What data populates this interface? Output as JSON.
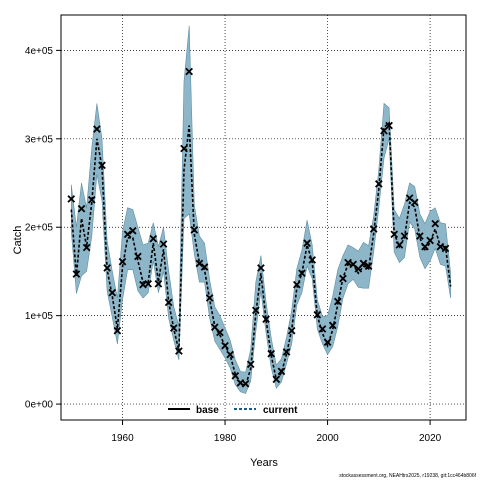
{
  "chart_data": {
    "type": "line",
    "title": "",
    "xlabel": "Years",
    "ylabel": "Catch",
    "xlim": [
      1948,
      2027
    ],
    "ylim": [
      -18000,
      440000
    ],
    "x_ticks": [
      1960,
      1980,
      2000,
      2020
    ],
    "x_tick_labels": [
      "1960",
      "1980",
      "2000",
      "2020"
    ],
    "y_ticks": [
      0,
      100000,
      200000,
      300000,
      400000
    ],
    "y_tick_labels": [
      "0e+00",
      "1e+05",
      "2e+05",
      "3e+05",
      "4e+05"
    ],
    "grid": true,
    "legend_position": "bottom-center",
    "band_color": "#8db6c9",
    "band_edge_color": "#5f8ea5",
    "line_color": "#000000",
    "legend": [
      {
        "label": "base",
        "style": "solid",
        "color": "#000000"
      },
      {
        "label": "current",
        "style": "dashed",
        "color": "#1a5c84"
      }
    ],
    "x": [
      1950,
      1951,
      1952,
      1953,
      1954,
      1955,
      1956,
      1957,
      1958,
      1959,
      1960,
      1961,
      1962,
      1963,
      1964,
      1965,
      1966,
      1967,
      1968,
      1969,
      1970,
      1971,
      1972,
      1973,
      1974,
      1975,
      1976,
      1977,
      1978,
      1979,
      1980,
      1981,
      1982,
      1983,
      1984,
      1985,
      1986,
      1987,
      1988,
      1989,
      1990,
      1991,
      1992,
      1993,
      1994,
      1995,
      1996,
      1997,
      1998,
      1999,
      2000,
      2001,
      2002,
      2003,
      2004,
      2005,
      2006,
      2007,
      2008,
      2009,
      2010,
      2011,
      2012,
      2013,
      2014,
      2015,
      2016,
      2017,
      2018,
      2019,
      2020,
      2021,
      2022,
      2023,
      2024
    ],
    "series": [
      {
        "name": "base",
        "values": [
          225000,
          150000,
          215000,
          180000,
          230000,
          305000,
          270000,
          155000,
          125000,
          87000,
          158000,
          190000,
          190000,
          165000,
          140000,
          140000,
          185000,
          140000,
          178000,
          118000,
          88000,
          62000,
          270000,
          310000,
          195000,
          162000,
          155000,
          120000,
          90000,
          80000,
          68000,
          57000,
          35000,
          24000,
          22000,
          42000,
          105000,
          150000,
          96000,
          56000,
          29000,
          36000,
          58000,
          85000,
          133000,
          150000,
          182000,
          163000,
          102000,
          82000,
          68000,
          85000,
          115000,
          145000,
          160000,
          160000,
          150000,
          158000,
          155000,
          195000,
          245000,
          315000,
          320000,
          195000,
          180000,
          190000,
          230000,
          225000,
          190000,
          175000,
          185000,
          200000,
          180000,
          180000,
          135000
        ]
      },
      {
        "name": "current",
        "values": [
          220000,
          145000,
          210000,
          178000,
          228000,
          300000,
          268000,
          152000,
          122000,
          85000,
          155000,
          188000,
          188000,
          162000,
          138000,
          138000,
          182000,
          138000,
          175000,
          115000,
          85000,
          60000,
          265000,
          315000,
          192000,
          160000,
          152000,
          118000,
          88000,
          78000,
          66000,
          55000,
          34000,
          23000,
          21000,
          40000,
          102000,
          148000,
          95000,
          55000,
          28000,
          35000,
          57000,
          84000,
          131000,
          148000,
          180000,
          161000,
          100000,
          80000,
          66000,
          84000,
          113000,
          143000,
          158000,
          158000,
          148000,
          156000,
          153000,
          193000,
          243000,
          313000,
          318000,
          193000,
          178000,
          188000,
          228000,
          223000,
          188000,
          173000,
          183000,
          198000,
          178000,
          178000,
          133000
        ]
      },
      {
        "name": "observed",
        "values": [
          232000,
          147000,
          221000,
          177000,
          231000,
          311000,
          270000,
          154000,
          126000,
          83000,
          161000,
          192000,
          196000,
          167000,
          135000,
          136000,
          187000,
          136000,
          181000,
          115000,
          86000,
          60000,
          289000,
          376000,
          197000,
          159000,
          155000,
          120000,
          87000,
          81000,
          66000,
          56000,
          32000,
          24000,
          23000,
          45000,
          106000,
          154000,
          96000,
          57000,
          28000,
          37000,
          59000,
          83000,
          135000,
          148000,
          182000,
          163000,
          101000,
          85000,
          70000,
          89000,
          116000,
          142000,
          160000,
          158000,
          153000,
          159000,
          156000,
          198000,
          249000,
          309000,
          315000,
          192000,
          180000,
          190000,
          233000,
          228000,
          190000,
          178000,
          185000,
          204000,
          178000,
          176000,
          null
        ]
      },
      {
        "name": "band_upper",
        "values": [
          248000,
          200000,
          250000,
          222000,
          290000,
          340000,
          300000,
          185000,
          150000,
          120000,
          195000,
          222000,
          220000,
          200000,
          180000,
          182000,
          205000,
          178000,
          200000,
          150000,
          110000,
          88000,
          365000,
          428000,
          225000,
          190000,
          182000,
          140000,
          110000,
          100000,
          86000,
          72000,
          50000,
          37000,
          36000,
          62000,
          138000,
          168000,
          115000,
          75000,
          44000,
          51000,
          76000,
          106000,
          153000,
          174000,
          208000,
          180000,
          118000,
          99000,
          100000,
          122000,
          152000,
          168000,
          180000,
          177000,
          173000,
          183000,
          179000,
          213000,
          265000,
          340000,
          335000,
          220000,
          210000,
          226000,
          250000,
          246000,
          215000,
          204000,
          218000,
          222000,
          205000,
          204000,
          148000
        ]
      },
      {
        "name": "band_lower",
        "values": [
          195000,
          125000,
          145000,
          150000,
          190000,
          260000,
          230000,
          128000,
          98000,
          68000,
          118000,
          152000,
          152000,
          128000,
          120000,
          126000,
          162000,
          126000,
          150000,
          97000,
          72000,
          50000,
          210000,
          215000,
          170000,
          138000,
          138000,
          97000,
          71000,
          62000,
          52000,
          41000,
          22000,
          14000,
          12000,
          26000,
          82000,
          128000,
          80000,
          41000,
          18000,
          25000,
          46000,
          68000,
          112000,
          126000,
          156000,
          142000,
          85000,
          68000,
          56000,
          65000,
          88000,
          120000,
          136000,
          141000,
          132000,
          131000,
          131000,
          172000,
          222000,
          278000,
          300000,
          172000,
          160000,
          166000,
          206000,
          198000,
          166000,
          153000,
          162000,
          176000,
          158000,
          156000,
          120000
        ]
      }
    ]
  },
  "footer": {
    "note": "stockassessment.org, NEAHtrs2025, r19238, git:1cc464b806f"
  }
}
